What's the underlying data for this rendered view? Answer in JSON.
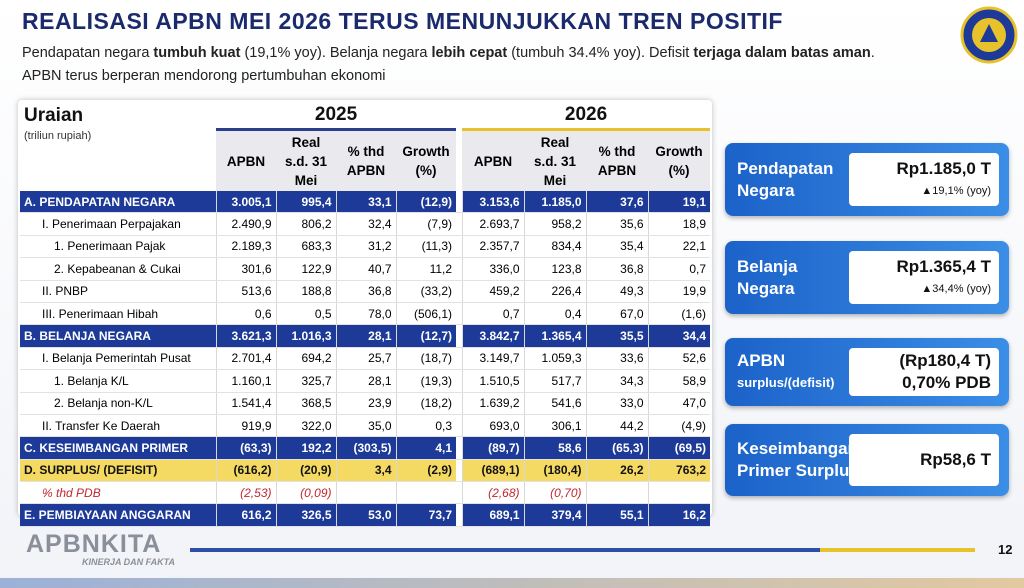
{
  "header": {
    "title": "REALISASI APBN MEI 2026 TERUS MENUNJUKKAN TREN POSITIF",
    "subtitle": [
      "Pendapatan negara ",
      "tumbuh kuat",
      " (19,1% yoy). Belanja negara ",
      "lebih cepat",
      " (tumbuh 34.4% yoy). Defisit ",
      "terjaga dalam batas aman",
      "."
    ],
    "subtitle2": "APBN terus berperan mendorong pertumbuhan ekonomi"
  },
  "table": {
    "header": "Uraian",
    "unit": "(triliun rupiah)",
    "years": [
      "2025",
      "2026"
    ],
    "columns": [
      "APBN",
      "Real s.d. 31 Mei",
      "% thd APBN",
      "Growth (%)"
    ],
    "rows": [
      {
        "label": "A. PENDAPATAN NEGARA",
        "cells": [
          "3.005,1",
          "995,4",
          "33,1",
          "(12,9)",
          "3.153,6",
          "1.185,0",
          "37,6",
          "19,1"
        ]
      },
      {
        "label": "I. Penerimaan Perpajakan",
        "cells": [
          "2.490,9",
          "806,2",
          "32,4",
          "(7,9)",
          "2.693,7",
          "958,2",
          "35,6",
          "18,9"
        ]
      },
      {
        "label": "1. Penerimaan Pajak",
        "cells": [
          "2.189,3",
          "683,3",
          "31,2",
          "(11,3)",
          "2.357,7",
          "834,4",
          "35,4",
          "22,1"
        ]
      },
      {
        "label": "2. Kepabeanan & Cukai",
        "cells": [
          "301,6",
          "122,9",
          "40,7",
          "11,2",
          "336,0",
          "123,8",
          "36,8",
          "0,7"
        ]
      },
      {
        "label": "II. PNBP",
        "cells": [
          "513,6",
          "188,8",
          "36,8",
          "(33,2)",
          "459,2",
          "226,4",
          "49,3",
          "19,9"
        ]
      },
      {
        "label": "III. Penerimaan Hibah",
        "cells": [
          "0,6",
          "0,5",
          "78,0",
          "(506,1)",
          "0,7",
          "0,4",
          "67,0",
          "(1,6)"
        ]
      },
      {
        "label": "B. BELANJA NEGARA",
        "cells": [
          "3.621,3",
          "1.016,3",
          "28,1",
          "(12,7)",
          "3.842,7",
          "1.365,4",
          "35,5",
          "34,4"
        ]
      },
      {
        "label": "I. Belanja Pemerintah Pusat",
        "cells": [
          "2.701,4",
          "694,2",
          "25,7",
          "(18,7)",
          "3.149,7",
          "1.059,3",
          "33,6",
          "52,6"
        ]
      },
      {
        "label": "1. Belanja K/L",
        "cells": [
          "1.160,1",
          "325,7",
          "28,1",
          "(19,3)",
          "1.510,5",
          "517,7",
          "34,3",
          "58,9"
        ]
      },
      {
        "label": "2. Belanja non-K/L",
        "cells": [
          "1.541,4",
          "368,5",
          "23,9",
          "(18,2)",
          "1.639,2",
          "541,6",
          "33,0",
          "47,0"
        ]
      },
      {
        "label": "II. Transfer Ke Daerah",
        "cells": [
          "919,9",
          "322,0",
          "35,0",
          "0,3",
          "693,0",
          "306,1",
          "44,2",
          "(4,9)"
        ]
      },
      {
        "label": "C. KESEIMBANGAN PRIMER",
        "cells": [
          "(63,3)",
          "192,2",
          "(303,5)",
          "4,1",
          "(89,7)",
          "58,6",
          "(65,3)",
          "(69,5)"
        ]
      },
      {
        "label": "D. SURPLUS/ (DEFISIT)",
        "cells": [
          "(616,2)",
          "(20,9)",
          "3,4",
          "(2,9)",
          "(689,1)",
          "(180,4)",
          "26,2",
          "763,2"
        ]
      },
      {
        "label": "% thd PDB",
        "cells": [
          "(2,53)",
          "(0,09)",
          null,
          null,
          "(2,68)",
          "(0,70)",
          null,
          null
        ]
      },
      {
        "label": "E. PEMBIAYAAN ANGGARAN",
        "cells": [
          "616,2",
          "326,5",
          "53,0",
          "73,7",
          "689,1",
          "379,4",
          "55,1",
          "16,2"
        ]
      }
    ]
  },
  "cards": [
    {
      "title": [
        "Pendapatan",
        "Negara"
      ],
      "value": [
        "Rp1.185,0 T"
      ],
      "note": "▲19,1% (yoy)"
    },
    {
      "title": [
        "Belanja",
        "Negara"
      ],
      "value": [
        "Rp1.365,4 T"
      ],
      "note": "▲34,4% (yoy)"
    },
    {
      "title": [
        "APBN",
        "surplus/(defisit)"
      ],
      "value": [
        "(Rp180,4 T)",
        "0,70% PDB"
      ]
    },
    {
      "title": [
        "Keseimbangan",
        "Primer Surplus"
      ],
      "value": [
        "Rp58,6 T"
      ]
    }
  ],
  "footer": {
    "brand": "APBNKITA",
    "tagline": "KINERJA DAN FAKTA",
    "page": "12"
  }
}
